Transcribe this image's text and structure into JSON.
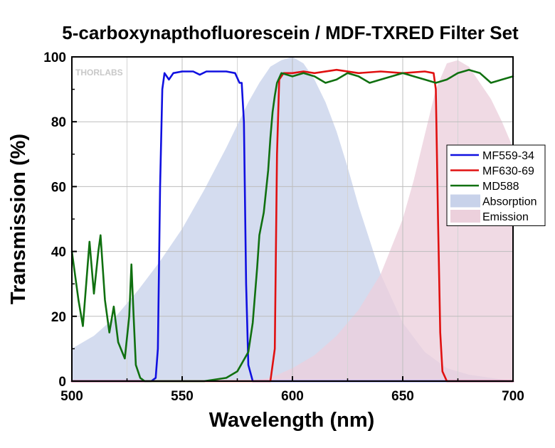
{
  "chart_data": {
    "type": "line",
    "title": "5-carboxynapthofluorescein / MDF-TXRED Filter Set",
    "xlabel": "Wavelength (nm)",
    "ylabel": "Transmission (%)",
    "xlim": [
      500,
      700
    ],
    "ylim": [
      0,
      100
    ],
    "xticks": [
      "500",
      "550",
      "600",
      "650",
      "700"
    ],
    "yticks": [
      "0",
      "20",
      "40",
      "60",
      "80",
      "100"
    ],
    "grid": true,
    "legend_position": "right",
    "watermark": "THORLABS",
    "series": [
      {
        "name": "MF559-34",
        "kind": "line",
        "color": "#1010e0",
        "x": [
          500,
          536,
          538,
          539,
          540,
          541,
          542,
          544,
          546,
          550,
          555,
          558,
          561,
          565,
          570,
          574,
          576,
          577,
          578,
          579,
          580,
          582,
          700
        ],
        "y": [
          0,
          0,
          1,
          10,
          60,
          90,
          95,
          93,
          95,
          95.5,
          95.5,
          94.5,
          95.5,
          95.5,
          95.5,
          95,
          92,
          92,
          80,
          30,
          5,
          0,
          0
        ]
      },
      {
        "name": "MF630-69",
        "kind": "line",
        "color": "#e01010",
        "x": [
          500,
          590,
          592,
          593,
          594,
          596,
          600,
          605,
          610,
          620,
          630,
          640,
          650,
          660,
          664,
          665,
          666,
          667,
          668,
          670,
          700
        ],
        "y": [
          0,
          0,
          10,
          70,
          93,
          95,
          95,
          95.5,
          95,
          96,
          95,
          95.5,
          95,
          95.5,
          95,
          90,
          50,
          15,
          3,
          0,
          0
        ]
      },
      {
        "name": "MD588",
        "kind": "line",
        "color": "#107010",
        "x": [
          500,
          503,
          505,
          508,
          510,
          512,
          513,
          515,
          517,
          519,
          521,
          524,
          526,
          527,
          528,
          529,
          531,
          533,
          535,
          540,
          560,
          570,
          575,
          580,
          582,
          584,
          585,
          587,
          589,
          590,
          591,
          592,
          593,
          595,
          600,
          605,
          610,
          615,
          620,
          625,
          630,
          635,
          640,
          645,
          650,
          655,
          660,
          665,
          670,
          675,
          680,
          685,
          690,
          695,
          700
        ],
        "y": [
          40,
          25,
          17,
          43,
          27,
          40,
          45,
          25,
          15,
          23,
          12,
          7,
          20,
          36,
          20,
          5,
          1,
          0,
          0,
          0,
          0,
          1,
          3,
          9,
          18,
          35,
          45,
          52,
          65,
          75,
          83,
          88,
          92,
          95,
          94,
          95,
          94,
          92,
          93,
          95,
          94,
          92,
          93,
          94,
          95,
          94,
          93,
          92,
          93,
          95,
          96,
          95,
          92,
          93,
          94
        ]
      },
      {
        "name": "Absorption",
        "kind": "area",
        "color": "#c8d2ea",
        "x": [
          500,
          510,
          520,
          530,
          540,
          550,
          560,
          570,
          575,
          580,
          585,
          590,
          595,
          600,
          605,
          610,
          615,
          620,
          625,
          630,
          640,
          650,
          660,
          670,
          680,
          690,
          700
        ],
        "y": [
          10,
          14,
          20,
          28,
          37,
          47,
          59,
          72,
          79,
          86,
          92,
          97,
          99,
          100,
          98,
          93,
          86,
          77,
          66,
          54,
          33,
          18,
          9,
          4,
          2,
          1,
          0
        ]
      },
      {
        "name": "Emission",
        "kind": "area",
        "color": "#ecd0dc",
        "x": [
          580,
          590,
          600,
          610,
          620,
          630,
          640,
          650,
          655,
          660,
          665,
          670,
          675,
          680,
          685,
          690,
          695,
          700
        ],
        "y": [
          0,
          1,
          4,
          8,
          14,
          22,
          33,
          50,
          62,
          76,
          90,
          98,
          99,
          97,
          92,
          87,
          80,
          72
        ]
      }
    ]
  }
}
